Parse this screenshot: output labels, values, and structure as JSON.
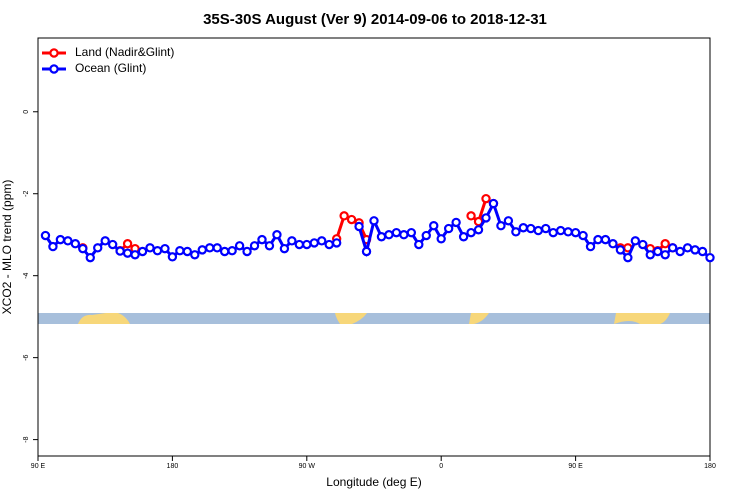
{
  "chart_data": {
    "type": "line",
    "title": "35S-30S August (Ver 9)   2014-09-06 to 2018-12-31",
    "xlabel": "Longitude (deg E)",
    "ylabel": "XCO2 - MLO trend (ppm)",
    "xlim": [
      90,
      540
    ],
    "ylim": [
      -8.4,
      1.8
    ],
    "xticks": [
      {
        "value": 90,
        "label": "90 E"
      },
      180,
      {
        "value": 270,
        "label": "90 W"
      },
      {
        "value": 360,
        "label": "0"
      },
      {
        "value": 450,
        "label": "90 E"
      },
      {
        "value": 540,
        "label": "180"
      }
    ],
    "yticks": [
      0,
      -2,
      -4,
      -6,
      -8
    ],
    "legend": "top-left",
    "x": [
      95,
      100,
      105,
      110,
      115,
      120,
      125,
      130,
      135,
      140,
      145,
      150,
      155,
      160,
      165,
      170,
      175,
      180,
      185,
      190,
      195,
      200,
      205,
      210,
      215,
      220,
      225,
      230,
      235,
      240,
      245,
      250,
      255,
      260,
      265,
      270,
      275,
      280,
      285,
      290,
      295,
      300,
      305,
      310,
      315,
      320,
      325,
      330,
      335,
      340,
      345,
      350,
      355,
      360,
      365,
      370,
      375,
      380,
      385,
      390,
      395,
      400,
      405,
      410,
      415,
      420,
      425,
      430,
      435,
      440,
      445,
      450,
      455,
      460,
      465,
      470,
      475,
      480,
      485,
      490,
      495,
      500,
      505,
      510,
      515,
      520,
      525,
      530,
      535,
      540
    ],
    "series": [
      {
        "name": "Land (Nadir&Glint)",
        "color": "#ff0000",
        "values": [
          null,
          null,
          null,
          null,
          null,
          -3.32,
          null,
          null,
          null,
          null,
          -3.39,
          -3.22,
          -3.34,
          null,
          null,
          null,
          null,
          null,
          null,
          null,
          null,
          null,
          null,
          null,
          null,
          null,
          null,
          null,
          null,
          null,
          null,
          null,
          null,
          null,
          null,
          null,
          null,
          null,
          null,
          -3.1,
          -2.54,
          -2.63,
          -2.71,
          -3.12,
          null,
          null,
          null,
          null,
          null,
          null,
          null,
          null,
          null,
          null,
          null,
          null,
          null,
          -2.54,
          -2.68,
          -2.12,
          -2.24,
          null,
          null,
          null,
          null,
          null,
          null,
          null,
          null,
          null,
          null,
          null,
          null,
          null,
          null,
          null,
          null,
          -3.32,
          -3.32,
          null,
          null,
          -3.34,
          -3.39,
          -3.22,
          -3.32,
          null,
          null,
          null,
          null,
          null
        ]
      },
      {
        "name": "Ocean (Glint)",
        "color": "#0000ff",
        "values": [
          -3.02,
          -3.29,
          -3.12,
          -3.15,
          -3.22,
          -3.34,
          -3.56,
          -3.32,
          -3.15,
          -3.24,
          -3.4,
          -3.45,
          -3.49,
          -3.41,
          -3.32,
          -3.39,
          -3.34,
          -3.54,
          -3.39,
          -3.41,
          -3.49,
          -3.37,
          -3.32,
          -3.32,
          -3.41,
          -3.39,
          -3.27,
          -3.41,
          -3.27,
          -3.12,
          -3.27,
          -3.0,
          -3.34,
          -3.15,
          -3.24,
          -3.24,
          -3.2,
          -3.15,
          -3.24,
          -3.2,
          null,
          null,
          -2.8,
          -3.41,
          -2.66,
          -3.05,
          -3.0,
          -2.95,
          -3.0,
          -2.95,
          -3.24,
          -3.02,
          -2.78,
          -3.1,
          -2.85,
          -2.7,
          -3.05,
          -2.95,
          -2.88,
          -2.59,
          -2.24,
          -2.78,
          -2.66,
          -2.93,
          -2.83,
          -2.85,
          -2.9,
          -2.85,
          -2.95,
          -2.9,
          -2.93,
          -2.95,
          -3.02,
          -3.29,
          -3.12,
          -3.12,
          -3.22,
          -3.37,
          -3.56,
          -3.15,
          -3.24,
          -3.49,
          -3.41,
          -3.49,
          -3.32,
          -3.41,
          -3.32,
          -3.37,
          -3.41,
          -3.56
        ]
      }
    ]
  }
}
